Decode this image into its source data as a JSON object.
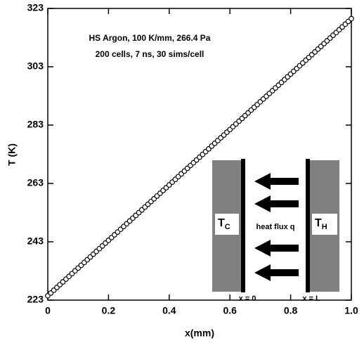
{
  "chart_data": {
    "type": "line",
    "x_label": "x(mm)",
    "y_label": "T (K)",
    "annotations": [
      "HS Argon,  100 K/mm,  266.4 Pa",
      "200 cells, 7 ns, 30 sims/cell"
    ],
    "inset": {
      "cold": {
        "main": "T",
        "sub": "C"
      },
      "hot": {
        "main": "T",
        "sub": "H"
      },
      "flux": "heat flux q",
      "left_wall": "x = 0",
      "right_wall": "x = L"
    },
    "xlim": [
      0,
      1
    ],
    "xticks": [
      0,
      0.2,
      0.4,
      0.6,
      0.8,
      {
        "value": 1,
        "label": "1.0"
      }
    ],
    "ylim": [
      223,
      323
    ],
    "yticks": [
      223,
      243,
      263,
      283,
      303,
      323
    ],
    "x": [
      0,
      0.01,
      0.02,
      0.03,
      0.04,
      0.05,
      0.06,
      0.07,
      0.08,
      0.09,
      0.1,
      0.11,
      0.12,
      0.13,
      0.14,
      0.15,
      0.16,
      0.17,
      0.18,
      0.19,
      0.2,
      0.21,
      0.22,
      0.23,
      0.24,
      0.25,
      0.26,
      0.27,
      0.28,
      0.29,
      0.3,
      0.31,
      0.32,
      0.33,
      0.34,
      0.35,
      0.36,
      0.37,
      0.38,
      0.39,
      0.4,
      0.41,
      0.42,
      0.43,
      0.44,
      0.45,
      0.46,
      0.47,
      0.48,
      0.49,
      0.5,
      0.51,
      0.52,
      0.53,
      0.54,
      0.55,
      0.56,
      0.57,
      0.58,
      0.59,
      0.6,
      0.61,
      0.62,
      0.63,
      0.64,
      0.65,
      0.66,
      0.67,
      0.68,
      0.69,
      0.7,
      0.71,
      0.72,
      0.73,
      0.74,
      0.75,
      0.76,
      0.77,
      0.78,
      0.79,
      0.8,
      0.81,
      0.82,
      0.83,
      0.84,
      0.85,
      0.86,
      0.87,
      0.88,
      0.89,
      0.9,
      0.91,
      0.92,
      0.93,
      0.94,
      0.95,
      0.96,
      0.97,
      0.98,
      0.99,
      1
    ],
    "series": [
      {
        "color": "#000000",
        "values": [
          224.5,
          225.45,
          226.4,
          227.35,
          228.3,
          229.25,
          230.2,
          231.15,
          232.1,
          233.05,
          234,
          234.95,
          235.9,
          236.85,
          237.8,
          238.75,
          239.7,
          240.65,
          241.6,
          242.55,
          243.5,
          244.45,
          245.4,
          246.35,
          247.3,
          248.25,
          249.2,
          250.15,
          251.1,
          252.05,
          253,
          253.95,
          254.9,
          255.85,
          256.8,
          257.75,
          258.7,
          259.65,
          260.6,
          261.55,
          262.5,
          263.45,
          264.4,
          265.35,
          266.3,
          267.25,
          268.2,
          269.15,
          270.1,
          271.05,
          272,
          272.95,
          273.9,
          274.85,
          275.8,
          276.75,
          277.7,
          278.65,
          279.6,
          280.55,
          281.5,
          282.45,
          283.4,
          284.35,
          285.3,
          286.25,
          287.2,
          288.15,
          289.1,
          290.05,
          291,
          291.95,
          292.9,
          293.85,
          294.8,
          295.75,
          296.7,
          297.65,
          298.6,
          299.55,
          300.5,
          301.45,
          302.4,
          303.35,
          304.3,
          305.25,
          306.2,
          307.15,
          308.1,
          309.05,
          310,
          310.95,
          311.9,
          312.85,
          313.8,
          314.75,
          315.7,
          316.65,
          317.6,
          318.55,
          319.5
        ]
      }
    ]
  }
}
